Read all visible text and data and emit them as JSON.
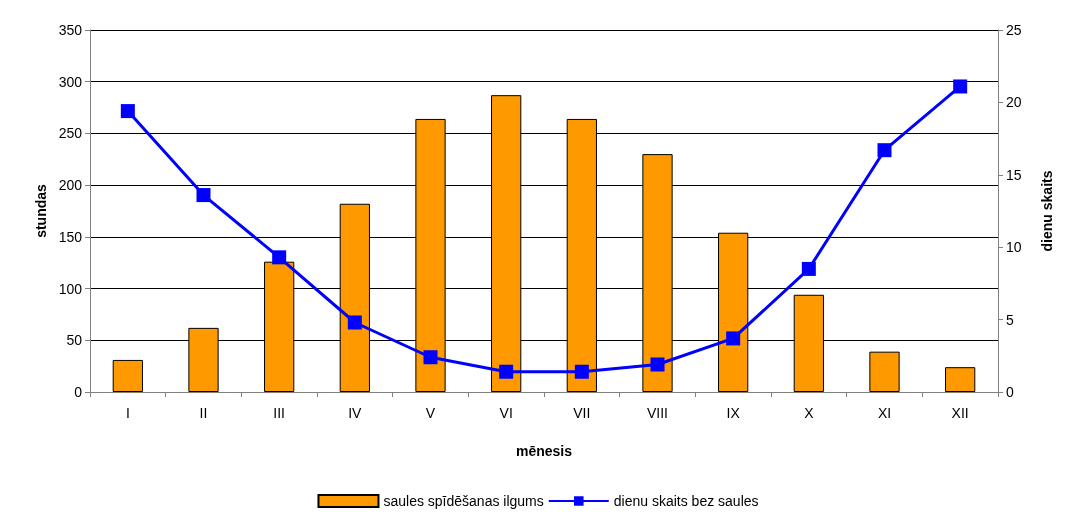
{
  "chart_data": {
    "type": "bar",
    "xlabel": "mēnesis",
    "ylabel": "stundas",
    "y2label": "dienu skaits",
    "categories": [
      "I",
      "II",
      "III",
      "IV",
      "V",
      "VI",
      "VII",
      "VIII",
      "IX",
      "X",
      "XI",
      "XII"
    ],
    "series": [
      {
        "name": "saules spīdēšanas ilgums",
        "color": "#ff9900",
        "values": [
          31,
          62,
          126,
          182,
          264,
          287,
          264,
          230,
          154,
          94,
          39,
          24
        ]
      },
      {
        "name": "dienu skaits bez saules",
        "type": "line",
        "axis": "y2",
        "color": "#0000ff",
        "marker": "square",
        "values": [
          19.4,
          13.6,
          9.3,
          4.8,
          2.4,
          1.4,
          1.4,
          1.9,
          3.7,
          8.5,
          16.7,
          21.1
        ]
      }
    ],
    "ylim": [
      0,
      350
    ],
    "yticks": [
      0,
      50,
      100,
      150,
      200,
      250,
      300,
      350
    ],
    "y2lim": [
      0,
      25
    ],
    "y2ticks": [
      0,
      5,
      10,
      15,
      20,
      25
    ],
    "grid": "y",
    "legend": "bottom"
  }
}
